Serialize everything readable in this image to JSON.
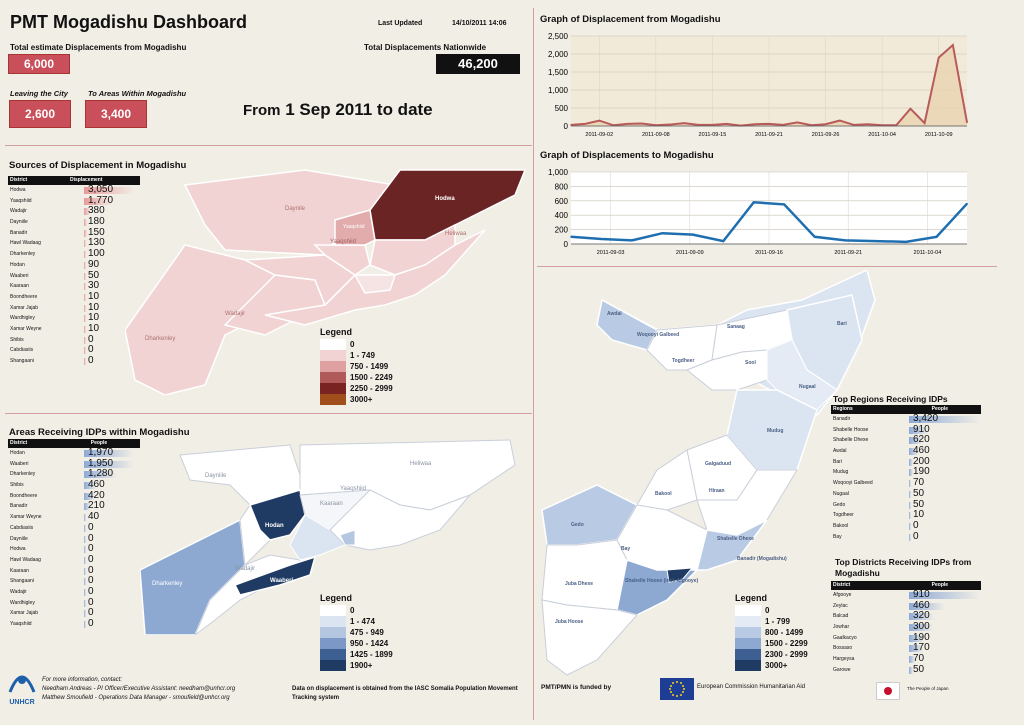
{
  "header": {
    "title": "PMT Mogadishu Dashboard",
    "last_updated_label": "Last Updated",
    "last_updated_value": "14/10/2011 14:06",
    "total_estimate_label": "Total estimate Displacements from Mogadishu",
    "total_estimate_value": "6,000",
    "total_nationwide_label": "Total Displacements Nationwide",
    "total_nationwide_value": "46,200",
    "leaving_label": "Leaving the City",
    "leaving_value": "2,600",
    "within_label": "To Areas Within Mogadishu",
    "within_value": "3,400",
    "from_prefix": "From",
    "from_date": "1 Sep 2011 to date"
  },
  "sources": {
    "title": "Sources of Displacement in Mogadishu",
    "col1": "District",
    "col2": "Displacement",
    "rows": [
      {
        "district": "Hodwa",
        "value": "3,050",
        "frac": 1.0
      },
      {
        "district": "Yaaqshiid",
        "value": "1,770",
        "frac": 0.58
      },
      {
        "district": "Wadajir",
        "value": "380",
        "frac": 0.12
      },
      {
        "district": "Dayniile",
        "value": "180",
        "frac": 0.06
      },
      {
        "district": "Banadir",
        "value": "150",
        "frac": 0.05
      },
      {
        "district": "Hawl Wadaag",
        "value": "130",
        "frac": 0.04
      },
      {
        "district": "Dharkenley",
        "value": "100",
        "frac": 0.03
      },
      {
        "district": "Hodan",
        "value": "90",
        "frac": 0.03
      },
      {
        "district": "Waaberi",
        "value": "50",
        "frac": 0.02
      },
      {
        "district": "Kaaraan",
        "value": "30",
        "frac": 0.01
      },
      {
        "district": "Boondheere",
        "value": "10",
        "frac": 0.004
      },
      {
        "district": "Xamar Jajab",
        "value": "10",
        "frac": 0.004
      },
      {
        "district": "Wardhigley",
        "value": "10",
        "frac": 0.004
      },
      {
        "district": "Xamar Weyne",
        "value": "10",
        "frac": 0.004
      },
      {
        "district": "Shibis",
        "value": "0",
        "frac": 0.0
      },
      {
        "district": "Cabdiasiis",
        "value": "0",
        "frac": 0.0
      },
      {
        "district": "Shangaani",
        "value": "0",
        "frac": 0.0
      }
    ],
    "map_labels": [
      "Daynile",
      "Yaaqshiid",
      "Heliwaa",
      "Dharkenley",
      "Wadajir"
    ],
    "hodwa_label": "Hodwa",
    "yaaqshiid_label": "Yaaqshiid",
    "legend_title": "Legend",
    "legend": [
      {
        "label": "0",
        "color": "#ffffff"
      },
      {
        "label": "1 - 749",
        "color": "#f1d3d3"
      },
      {
        "label": "750 - 1499",
        "color": "#dea0a0"
      },
      {
        "label": "1500 - 2249",
        "color": "#b05a5a"
      },
      {
        "label": "2250 - 2999",
        "color": "#7a2323"
      },
      {
        "label": "3000+",
        "color": "#a04e1c"
      }
    ]
  },
  "areas": {
    "title": "Areas Receiving IDPs within Mogadishu",
    "col1": "District",
    "col2": "People",
    "rows": [
      {
        "district": "Hodan",
        "value": "1,970",
        "frac": 1.0
      },
      {
        "district": "Waaberi",
        "value": "1,950",
        "frac": 0.99
      },
      {
        "district": "Dharkenley",
        "value": "1,280",
        "frac": 0.65
      },
      {
        "district": "Shibis",
        "value": "460",
        "frac": 0.23
      },
      {
        "district": "Boondheere",
        "value": "420",
        "frac": 0.21
      },
      {
        "district": "Banadir",
        "value": "210",
        "frac": 0.11
      },
      {
        "district": "Xamar Weyne",
        "value": "40",
        "frac": 0.02
      },
      {
        "district": "Cabdiasiis",
        "value": "0",
        "frac": 0.0
      },
      {
        "district": "Dayniile",
        "value": "0",
        "frac": 0.0
      },
      {
        "district": "Hodwa",
        "value": "0",
        "frac": 0.0
      },
      {
        "district": "Hawl Wadaag",
        "value": "0",
        "frac": 0.0
      },
      {
        "district": "Kaaraan",
        "value": "0",
        "frac": 0.0
      },
      {
        "district": "Shangaani",
        "value": "0",
        "frac": 0.0
      },
      {
        "district": "Wadajir",
        "value": "0",
        "frac": 0.0
      },
      {
        "district": "Wardhigley",
        "value": "0",
        "frac": 0.0
      },
      {
        "district": "Xamar Jajab",
        "value": "0",
        "frac": 0.0
      },
      {
        "district": "Yaaqshiid",
        "value": "0",
        "frac": 0.0
      }
    ],
    "map_labels": [
      "Dayniile",
      "Kaaraan",
      "Heliwaa",
      "Yaaqshiid",
      "Dharkenley",
      "Wadajir"
    ],
    "hodan_label": "Hodan",
    "waaberi_label": "Waaberi",
    "legend_title": "Legend",
    "legend": [
      {
        "label": "0",
        "color": "#ffffff"
      },
      {
        "label": "1 - 474",
        "color": "#dbe4f1"
      },
      {
        "label": "475 - 949",
        "color": "#b4c6e0"
      },
      {
        "label": "950 - 1424",
        "color": "#7b98c6"
      },
      {
        "label": "1425 - 1899",
        "color": "#3e5f92"
      },
      {
        "label": "1900+",
        "color": "#1f3a63"
      }
    ]
  },
  "graph1": {
    "title": "Graph of Displacement from Mogadishu"
  },
  "graph2": {
    "title": "Graph of Displacements to Mogadishu"
  },
  "chart_data": [
    {
      "type": "area",
      "title": "Graph of Displacement from Mogadishu",
      "ylim": [
        0,
        2500
      ],
      "yticks": [
        "0",
        "500",
        "1,000",
        "1,500",
        "2,000",
        "2,500"
      ],
      "xticks": [
        "2011-09-02",
        "2011-09-08",
        "2011-09-15",
        "2011-09-21",
        "2011-09-26",
        "2011-10-04",
        "2011-10-09"
      ],
      "values": [
        30,
        60,
        150,
        20,
        60,
        70,
        20,
        40,
        80,
        30,
        30,
        60,
        10,
        50,
        60,
        30,
        100,
        20,
        50,
        150,
        30,
        50,
        20,
        20,
        480,
        80,
        1900,
        2250,
        100
      ],
      "color": "#b85a5a"
    },
    {
      "type": "line",
      "title": "Graph of Displacements to Mogadishu",
      "ylim": [
        0,
        1000
      ],
      "yticks": [
        "0",
        "200",
        "400",
        "600",
        "800",
        "1,000"
      ],
      "xticks": [
        "2011-09-03",
        "2011-09-09",
        "2011-09-16",
        "2011-09-21",
        "2011-10-04"
      ],
      "values": [
        100,
        70,
        50,
        150,
        130,
        40,
        580,
        550,
        100,
        50,
        40,
        30,
        100,
        560
      ],
      "color": "#1f6fb0"
    }
  ],
  "regions": {
    "map_labels": [
      {
        "text": "Awdal"
      },
      {
        "text": "Woqooyi Galbeed"
      },
      {
        "text": "Sanaag"
      },
      {
        "text": "Bari"
      },
      {
        "text": "Togdheer"
      },
      {
        "text": "Sool"
      },
      {
        "text": "Nugaal"
      },
      {
        "text": "Mudug"
      },
      {
        "text": "Galgaduud"
      },
      {
        "text": "Bakool"
      },
      {
        "text": "Hiraan"
      },
      {
        "text": "Gedo"
      },
      {
        "text": "Bay"
      },
      {
        "text": "Shabelle Dhexe"
      },
      {
        "text": "Banadir (Mogadishu)"
      },
      {
        "text": "Juba Dhexe"
      },
      {
        "text": "Shabelle Hoose (incl. Afgooye)"
      },
      {
        "text": "Juba Hoose"
      }
    ],
    "legend_title": "Legend",
    "legend": [
      {
        "label": "0",
        "color": "#ffffff"
      },
      {
        "label": "1 - 799",
        "color": "#e4ebf4"
      },
      {
        "label": "800 - 1499",
        "color": "#b9cbe4"
      },
      {
        "label": "1500 - 2299",
        "color": "#8da9d2"
      },
      {
        "label": "2300 - 2999",
        "color": "#3d5f91"
      },
      {
        "label": "3000+",
        "color": "#1f3a63"
      }
    ]
  },
  "top_regions": {
    "title": "Top Regions Receiving IDPs",
    "col1": "Regions",
    "col2": "People",
    "rows": [
      {
        "name": "Banadir",
        "value": "3,420",
        "frac": 1.0
      },
      {
        "name": "Shabelle Hoose",
        "value": "910",
        "frac": 0.27
      },
      {
        "name": "Shabelle Dhexe",
        "value": "620",
        "frac": 0.18
      },
      {
        "name": "Awdal",
        "value": "460",
        "frac": 0.13
      },
      {
        "name": "Bari",
        "value": "200",
        "frac": 0.06
      },
      {
        "name": "Mudug",
        "value": "190",
        "frac": 0.055
      },
      {
        "name": "Woqooyi Galbeed",
        "value": "70",
        "frac": 0.02
      },
      {
        "name": "Nugaal",
        "value": "50",
        "frac": 0.015
      },
      {
        "name": "Gedo",
        "value": "50",
        "frac": 0.015
      },
      {
        "name": "Togdheer",
        "value": "10",
        "frac": 0.003
      },
      {
        "name": "Bakool",
        "value": "0",
        "frac": 0.0
      },
      {
        "name": "Bay",
        "value": "0",
        "frac": 0.0
      }
    ]
  },
  "top_districts": {
    "title": "Top Districts Receiving IDPs from Mogadishu",
    "col1": "District",
    "col2": "People",
    "rows": [
      {
        "name": "Afgooye",
        "value": "910",
        "frac": 1.0
      },
      {
        "name": "Zeylac",
        "value": "460",
        "frac": 0.5
      },
      {
        "name": "Balcad",
        "value": "320",
        "frac": 0.35
      },
      {
        "name": "Jowhar",
        "value": "300",
        "frac": 0.33
      },
      {
        "name": "Gaalkacyo",
        "value": "190",
        "frac": 0.21
      },
      {
        "name": "Bossaso",
        "value": "170",
        "frac": 0.19
      },
      {
        "name": "Hargeysa",
        "value": "70",
        "frac": 0.08
      },
      {
        "name": "Garowe",
        "value": "50",
        "frac": 0.05
      }
    ]
  },
  "footer": {
    "logo_text": "UNHCR",
    "contact_line1": "For more information, contact:",
    "contact_line2": "Needham Andreas - PI Officer/Executive Assistant: needham@unhcr.org",
    "contact_line3": "Matthew Smoufield - Operations Data Manager - smoufield@unhcr.org",
    "data_note": "Data on displacement is obtained from the IASC Somalia Population Movement Tracking system",
    "funded_label": "PMT/PMN is funded by",
    "eu_label": "European Commission Humanitarian Aid",
    "japan_label": "The People of Japan"
  },
  "colors": {
    "accent_red": "#c9505a",
    "divider": "#d3a0a0",
    "bar_red": "#e89a9a",
    "bar_blue": "#8eaad6"
  }
}
